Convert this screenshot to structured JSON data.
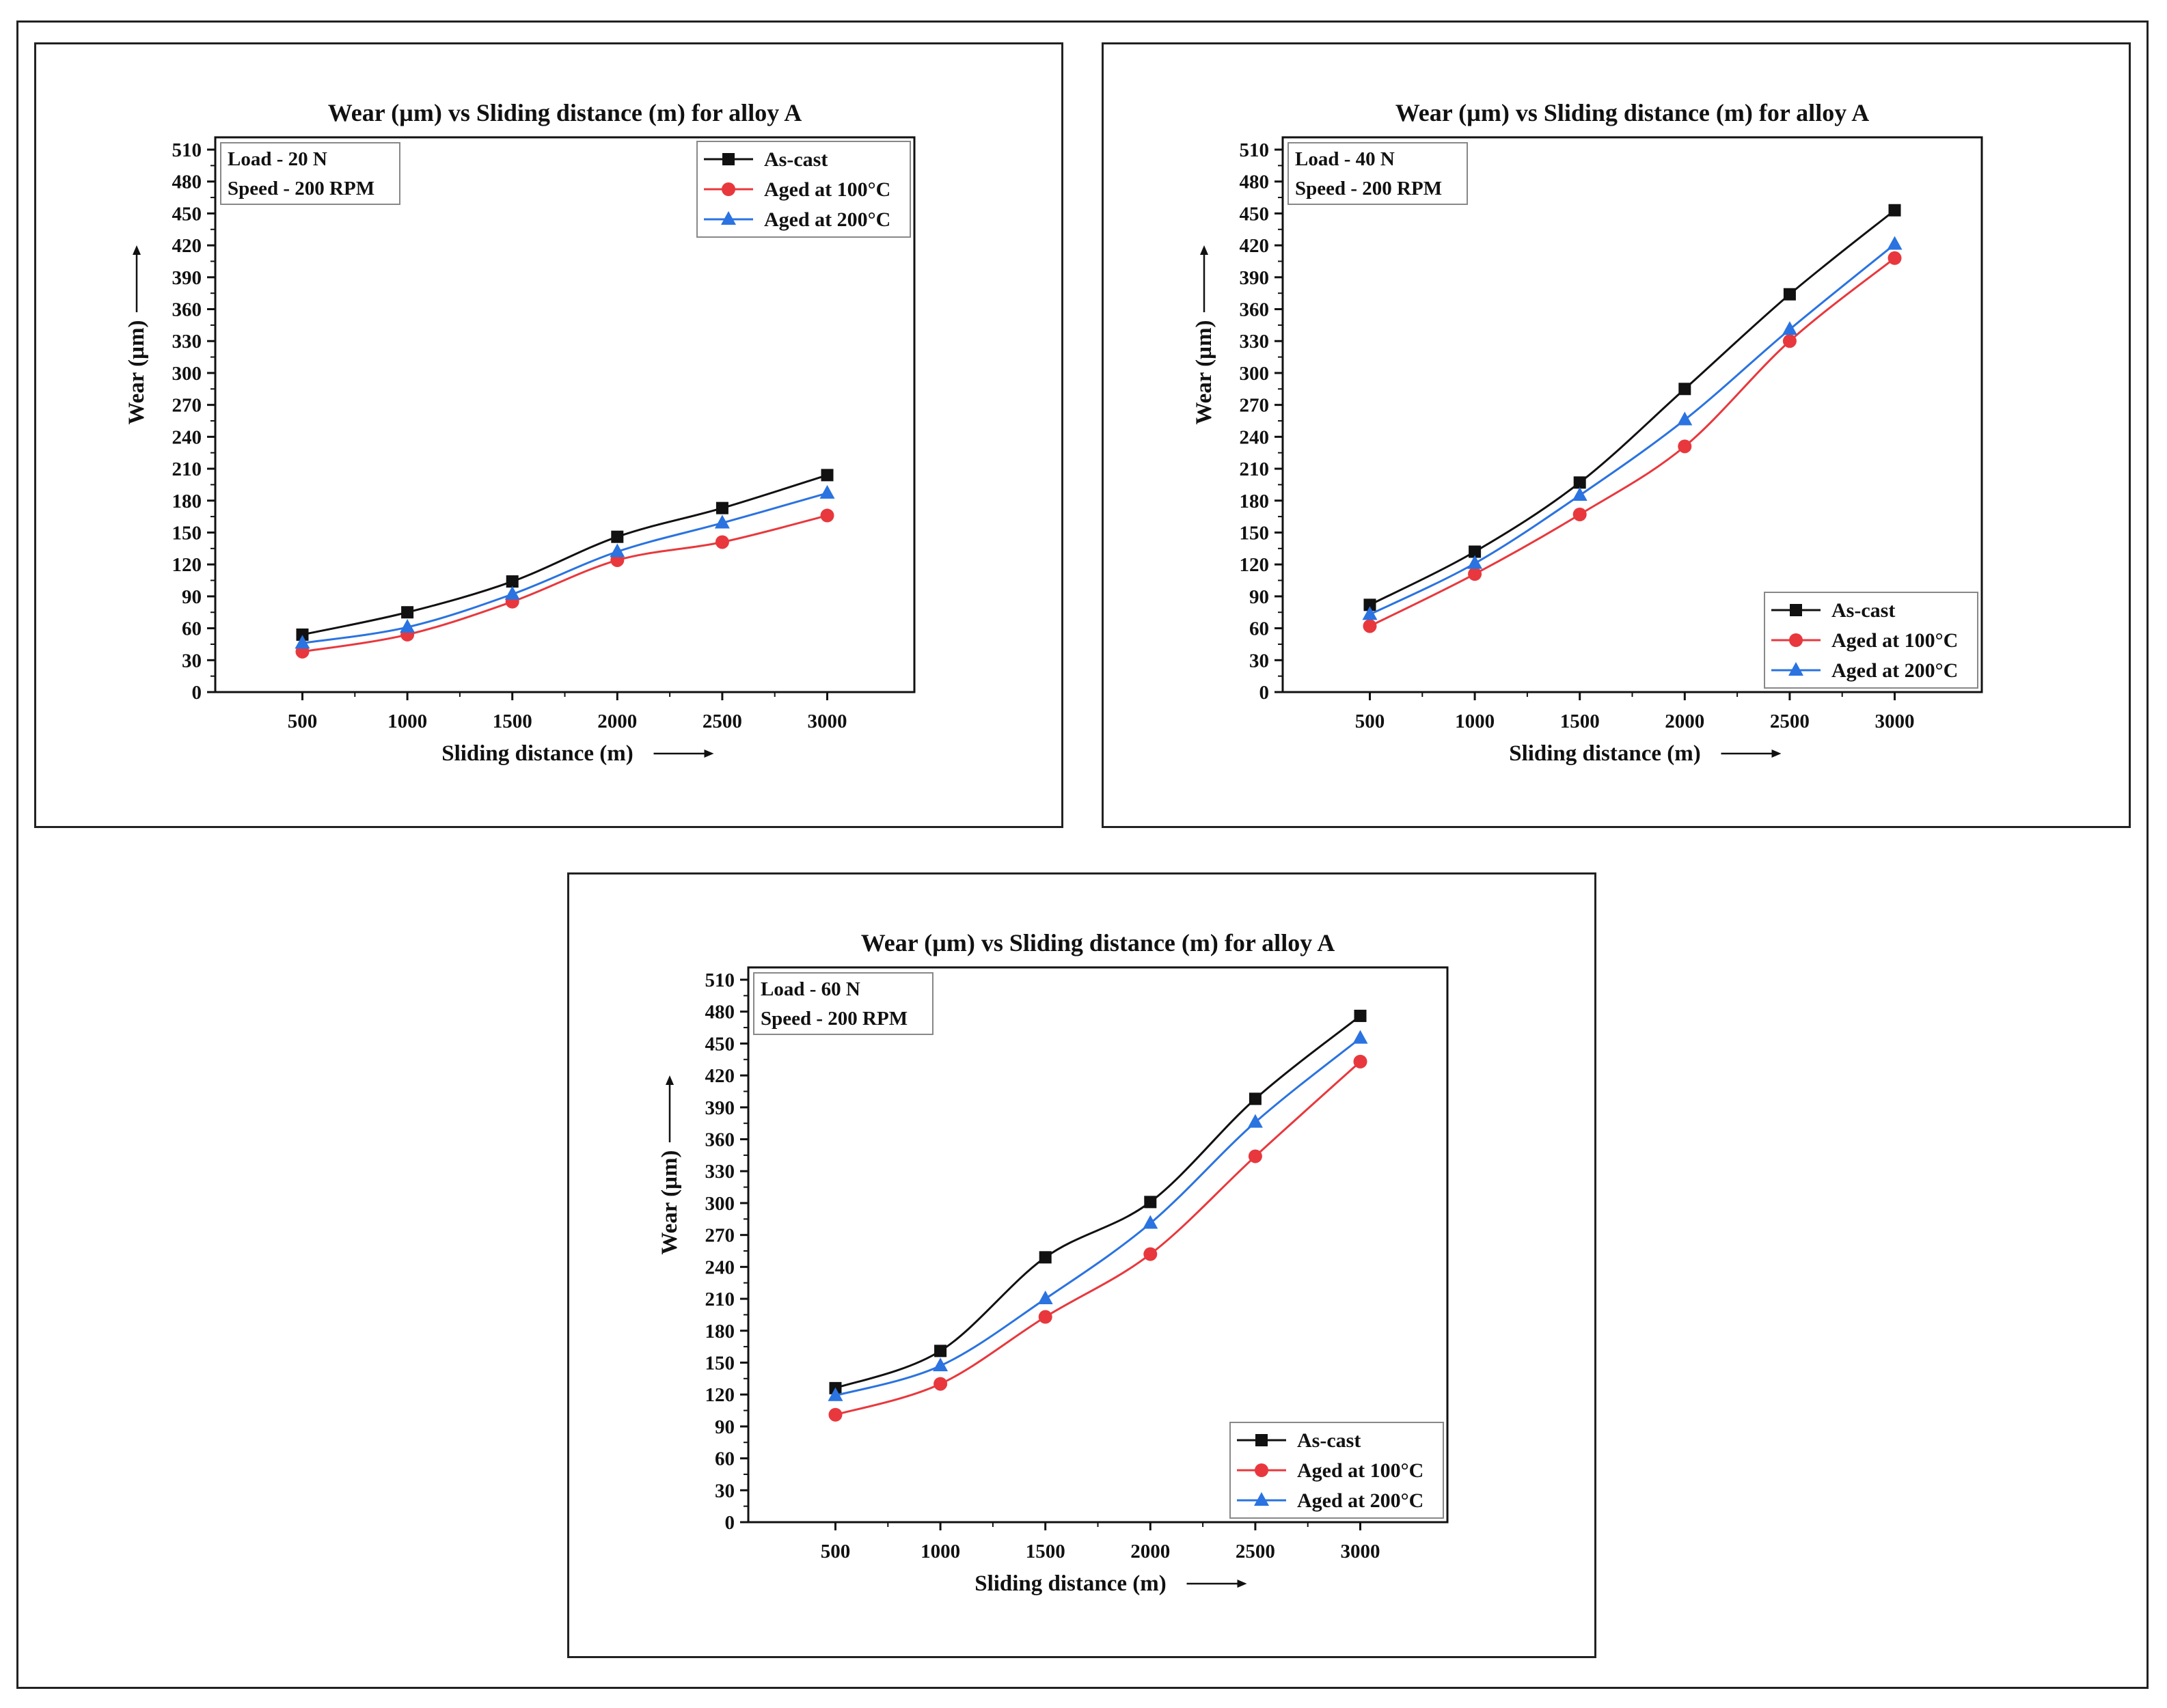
{
  "figure": {
    "colors": {
      "as_cast": "#111111",
      "aged_100": "#e8383d",
      "aged_200": "#2a73e0",
      "axis": "#111111"
    }
  },
  "chart_data": [
    {
      "type": "line",
      "title": "Wear (µm) vs Sliding distance (m) for alloy A",
      "xlabel": "Sliding distance (m)",
      "ylabel": "Wear (µm)",
      "x": [
        500,
        1000,
        1500,
        2000,
        2500,
        3000
      ],
      "xticks": [
        "500",
        "1000",
        "1500",
        "2000",
        "2500",
        "3000"
      ],
      "ylim": [
        0,
        510
      ],
      "yticks": [
        "0",
        "30",
        "60",
        "90",
        "120",
        "150",
        "180",
        "210",
        "240",
        "270",
        "300",
        "330",
        "360",
        "390",
        "420",
        "450",
        "480",
        "510"
      ],
      "conditions": [
        "Load - 20 N",
        "Speed - 200 RPM"
      ],
      "legend_position": "top-right",
      "series": [
        {
          "name": "As-cast",
          "marker": "square",
          "values": [
            54,
            75,
            104,
            146,
            173,
            204
          ]
        },
        {
          "name": "Aged at 100°C",
          "marker": "circle",
          "values": [
            38,
            54,
            85,
            124,
            141,
            166
          ]
        },
        {
          "name": "Aged at 200°C",
          "marker": "triangle",
          "values": [
            46,
            61,
            92,
            132,
            159,
            187
          ]
        }
      ]
    },
    {
      "type": "line",
      "title": "Wear (µm) vs Sliding distance (m) for alloy A",
      "xlabel": "Sliding distance (m)",
      "ylabel": "Wear (µm)",
      "x": [
        500,
        1000,
        1500,
        2000,
        2500,
        3000
      ],
      "xticks": [
        "500",
        "1000",
        "1500",
        "2000",
        "2500",
        "3000"
      ],
      "ylim": [
        0,
        510
      ],
      "yticks": [
        "0",
        "30",
        "60",
        "90",
        "120",
        "150",
        "180",
        "210",
        "240",
        "270",
        "300",
        "330",
        "360",
        "390",
        "420",
        "450",
        "480",
        "510"
      ],
      "conditions": [
        "Load - 40 N",
        "Speed - 200 RPM"
      ],
      "legend_position": "bottom-right",
      "series": [
        {
          "name": "As-cast",
          "marker": "square",
          "values": [
            82,
            132,
            197,
            285,
            374,
            453
          ]
        },
        {
          "name": "Aged at 100°C",
          "marker": "circle",
          "values": [
            62,
            111,
            167,
            231,
            330,
            408
          ]
        },
        {
          "name": "Aged at 200°C",
          "marker": "triangle",
          "values": [
            73,
            121,
            185,
            256,
            341,
            421
          ]
        }
      ]
    },
    {
      "type": "line",
      "title": "Wear (µm) vs Sliding distance (m) for alloy A",
      "xlabel": "Sliding distance (m)",
      "ylabel": "Wear (µm)",
      "x": [
        500,
        1000,
        1500,
        2000,
        2500,
        3000
      ],
      "xticks": [
        "500",
        "1000",
        "1500",
        "2000",
        "2500",
        "3000"
      ],
      "ylim": [
        0,
        510
      ],
      "yticks": [
        "0",
        "30",
        "60",
        "90",
        "120",
        "150",
        "180",
        "210",
        "240",
        "270",
        "300",
        "330",
        "360",
        "390",
        "420",
        "450",
        "480",
        "510"
      ],
      "conditions": [
        "Load - 60 N",
        "Speed - 200 RPM"
      ],
      "legend_position": "bottom-right",
      "series": [
        {
          "name": "As-cast",
          "marker": "square",
          "values": [
            126,
            161,
            249,
            301,
            398,
            476
          ]
        },
        {
          "name": "Aged at 100°C",
          "marker": "circle",
          "values": [
            101,
            130,
            193,
            252,
            344,
            433
          ]
        },
        {
          "name": "Aged at 200°C",
          "marker": "triangle",
          "values": [
            119,
            147,
            210,
            281,
            376,
            455
          ]
        }
      ]
    }
  ]
}
